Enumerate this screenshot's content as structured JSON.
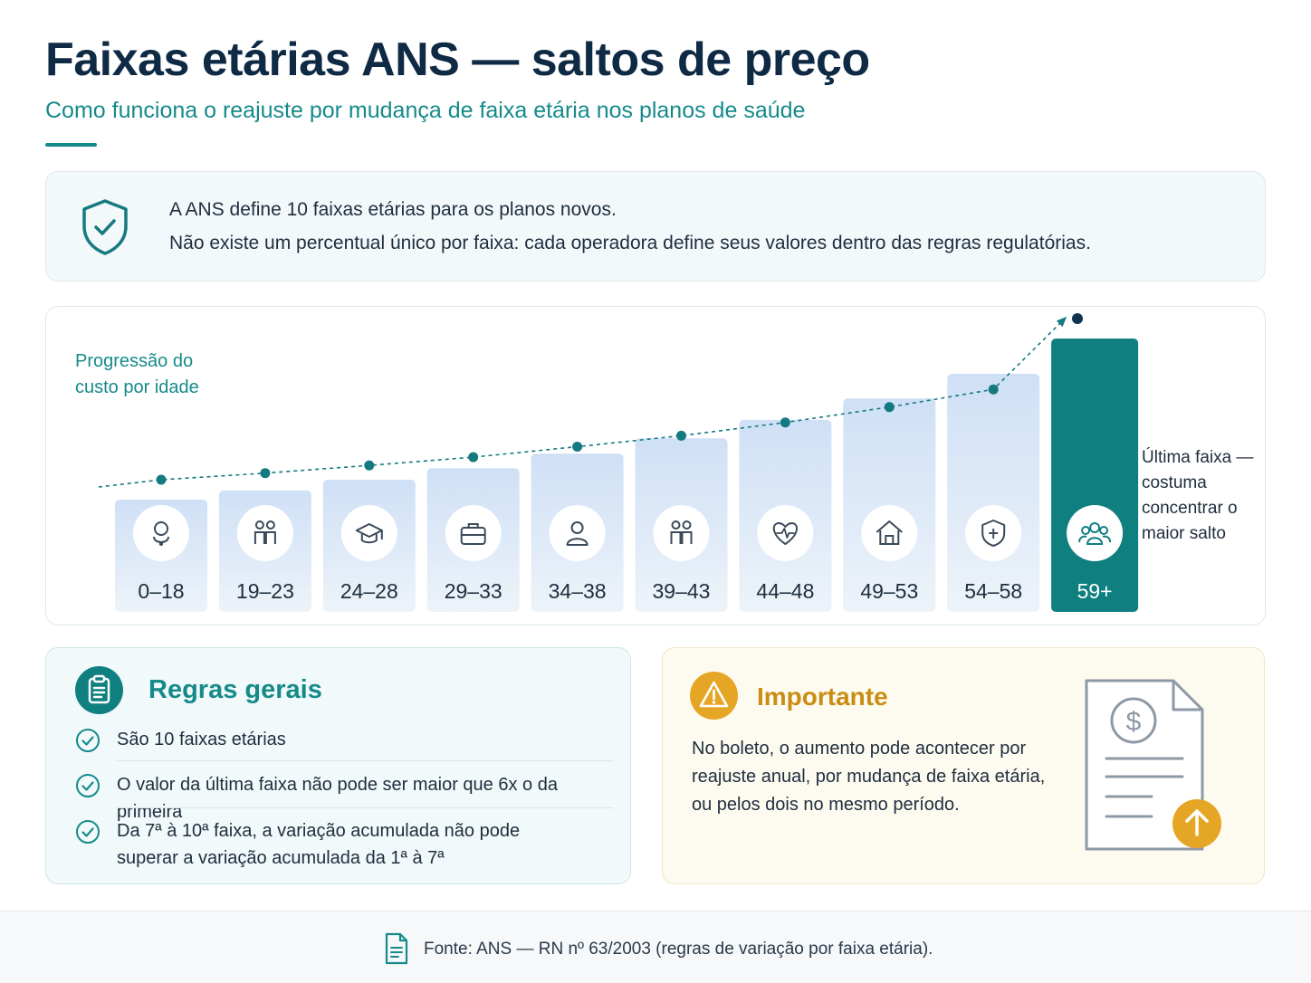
{
  "header": {
    "title": "Faixas etárias ANS — saltos de preço",
    "subtitle": "Como funciona o reajuste por mudança de faixa etária nos planos de saúde"
  },
  "info": {
    "icon": "shield-check-icon",
    "line1": "A ANS define 10 faixas etárias para os planos novos.",
    "line2": "Não existe um percentual único por faixa: cada operadora define seus valores dentro das regras regulatórias."
  },
  "chart_data": {
    "type": "bar",
    "title": "Progressão do custo por idade",
    "categories": [
      "0–18",
      "19–23",
      "24–28",
      "29–33",
      "34–38",
      "39–43",
      "44–48",
      "49–53",
      "54–58",
      "59+"
    ],
    "values": [
      1.0,
      1.12,
      1.26,
      1.41,
      1.6,
      1.8,
      2.04,
      2.32,
      2.64,
      3.1
    ],
    "trend_values": [
      1.0,
      1.12,
      1.26,
      1.41,
      1.6,
      1.8,
      2.04,
      2.32,
      2.64,
      3.1
    ],
    "trend_extension": 3.4,
    "icons": [
      "baby-icon",
      "couple-icon",
      "graduation-cap-icon",
      "briefcase-icon",
      "person-icon",
      "family-icon",
      "heart-pulse-icon",
      "house-icon",
      "shield-plus-icon",
      "group-icon"
    ],
    "highlight_index": 9,
    "annotation": [
      "Última faixa —",
      "costuma",
      "concentrar o",
      "maior salto"
    ],
    "colors": {
      "bar": "#dce9f8",
      "bar_highlight": "#0f7f80",
      "trend": "#157a80",
      "label": "#1f2d3d",
      "label_highlight": "#ffffff"
    },
    "legend": "none",
    "grid": false
  },
  "rules": {
    "heading": "Regras gerais",
    "icon": "clipboard-icon",
    "items": [
      "São 10 faixas etárias",
      "O valor da última faixa não pode ser maior que 6x o da primeira",
      "Da 7ª à 10ª faixa, a variação acumulada não pode superar a variação acumulada da 1ª à 7ª"
    ]
  },
  "important": {
    "heading": "Importante",
    "icon": "warning-icon",
    "text": "No boleto, o aumento pode acontecer por reajuste anual, por mudança de faixa etária, ou pelos dois no mesmo período.",
    "illustration": "invoice-increase-icon"
  },
  "footer": {
    "icon": "document-icon",
    "text": "Fonte: ANS — RN nº 63/2003 (regras de variação por faixa etária)."
  }
}
